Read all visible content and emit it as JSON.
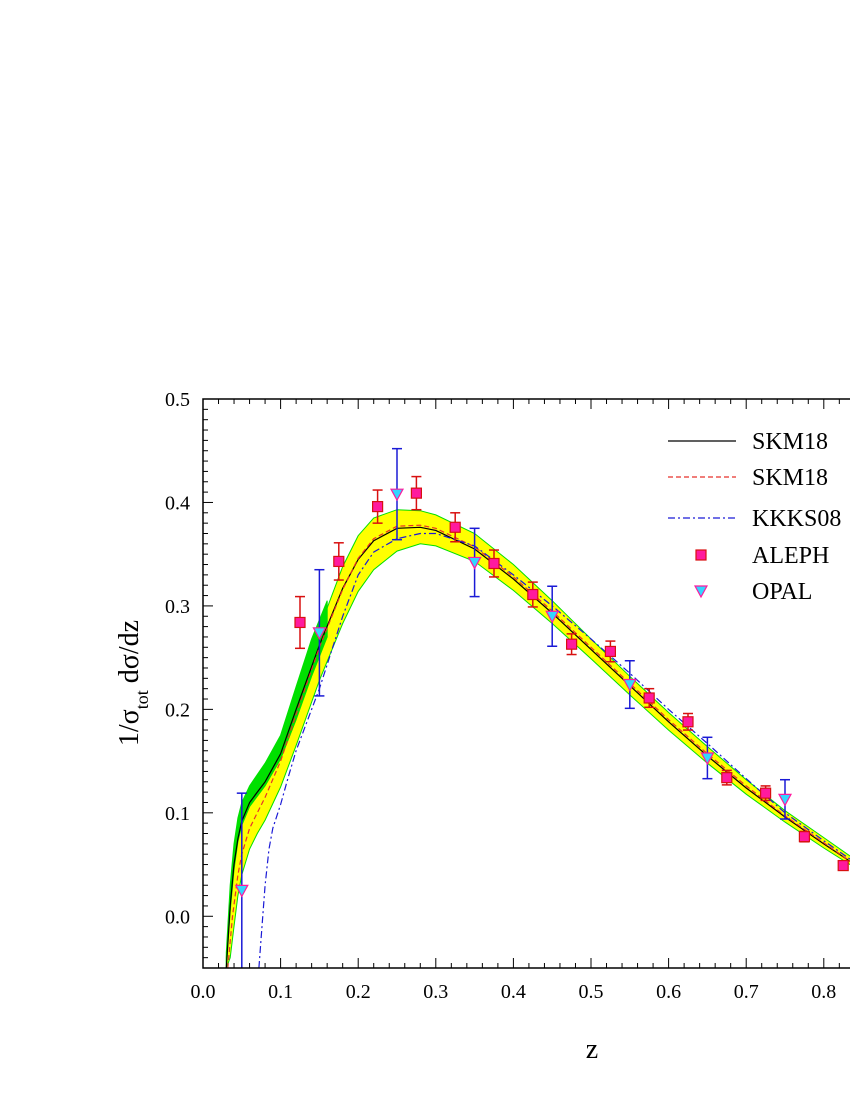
{
  "chart_data": {
    "type": "line",
    "xlabel": "z",
    "ylabel": "1/σtot dσ/dz",
    "ylabel_parts": {
      "pre": "1/σ",
      "sub": "tot",
      "post": " dσ/dz"
    },
    "xlim": [
      0.0,
      0.84
    ],
    "ylim": [
      -0.05,
      0.5
    ],
    "x_ticks": [
      "0.0",
      "0.1",
      "0.2",
      "0.3",
      "0.4",
      "0.5",
      "0.6",
      "0.7",
      "0.8"
    ],
    "y_ticks": [
      "0.0",
      "0.1",
      "0.2",
      "0.3",
      "0.4",
      "0.5"
    ],
    "grid": false,
    "legend_position": "top-right",
    "colors": {
      "skm18_a": "#000000",
      "skm18_b": "#e8312a",
      "kkks08": "#1a1ad6",
      "aleph_fill": "#ff1a9e",
      "aleph_err": "#d81010",
      "opal_fill": "#33d6ff",
      "opal_err": "#1a1ad6",
      "band_yellow": "#ffff00",
      "band_green": "#00e000"
    },
    "series": [
      {
        "name": "SKM18",
        "style": "solid",
        "x": [
          0.03,
          0.035,
          0.04,
          0.045,
          0.05,
          0.06,
          0.07,
          0.08,
          0.1,
          0.12,
          0.15,
          0.18,
          0.2,
          0.22,
          0.25,
          0.28,
          0.3,
          0.35,
          0.4,
          0.45,
          0.5,
          0.55,
          0.6,
          0.65,
          0.7,
          0.75,
          0.8,
          0.84
        ],
        "y": [
          -0.05,
          0.01,
          0.05,
          0.075,
          0.092,
          0.11,
          0.12,
          0.13,
          0.157,
          0.2,
          0.262,
          0.317,
          0.345,
          0.363,
          0.375,
          0.376,
          0.373,
          0.355,
          0.326,
          0.293,
          0.258,
          0.223,
          0.188,
          0.155,
          0.124,
          0.096,
          0.07,
          0.05
        ]
      },
      {
        "name": "SKM18",
        "style": "dashed",
        "x": [
          0.032,
          0.038,
          0.045,
          0.05,
          0.06,
          0.07,
          0.08,
          0.1,
          0.12,
          0.15,
          0.18,
          0.2,
          0.22,
          0.25,
          0.28,
          0.3,
          0.35,
          0.4,
          0.45,
          0.5,
          0.55,
          0.6,
          0.65,
          0.7,
          0.75,
          0.8,
          0.84
        ],
        "y": [
          -0.05,
          0.0,
          0.04,
          0.06,
          0.085,
          0.1,
          0.115,
          0.15,
          0.195,
          0.26,
          0.316,
          0.346,
          0.365,
          0.377,
          0.378,
          0.375,
          0.357,
          0.328,
          0.295,
          0.26,
          0.225,
          0.19,
          0.157,
          0.126,
          0.097,
          0.071,
          0.05
        ]
      },
      {
        "name": "KKKS08",
        "style": "dashdot",
        "x": [
          0.072,
          0.075,
          0.08,
          0.085,
          0.09,
          0.1,
          0.11,
          0.12,
          0.15,
          0.18,
          0.2,
          0.22,
          0.25,
          0.28,
          0.3,
          0.35,
          0.4,
          0.45,
          0.5,
          0.55,
          0.6,
          0.65,
          0.7,
          0.75,
          0.8,
          0.84
        ],
        "y": [
          -0.05,
          -0.02,
          0.03,
          0.065,
          0.085,
          0.108,
          0.135,
          0.16,
          0.22,
          0.29,
          0.33,
          0.352,
          0.365,
          0.37,
          0.37,
          0.358,
          0.33,
          0.3,
          0.268,
          0.235,
          0.2,
          0.167,
          0.133,
          0.1,
          0.073,
          0.052
        ]
      },
      {
        "name": "ALEPH",
        "marker": "square",
        "x": [
          0.125,
          0.175,
          0.225,
          0.275,
          0.325,
          0.375,
          0.425,
          0.475,
          0.525,
          0.575,
          0.625,
          0.675,
          0.725,
          0.775,
          0.825
        ],
        "y": [
          0.284,
          0.343,
          0.396,
          0.409,
          0.376,
          0.341,
          0.311,
          0.263,
          0.256,
          0.211,
          0.188,
          0.134,
          0.119,
          0.077,
          0.049
        ],
        "err": [
          0.025,
          0.018,
          0.016,
          0.016,
          0.014,
          0.013,
          0.012,
          0.01,
          0.01,
          0.009,
          0.008,
          0.007,
          0.007,
          0.005,
          0.004
        ]
      },
      {
        "name": "OPAL",
        "marker": "triangle-down",
        "x": [
          0.05,
          0.15,
          0.25,
          0.35,
          0.45,
          0.55,
          0.65,
          0.75
        ],
        "y": [
          0.025,
          0.274,
          0.408,
          0.342,
          0.29,
          0.224,
          0.153,
          0.113
        ],
        "err": [
          0.094,
          0.061,
          0.044,
          0.033,
          0.029,
          0.023,
          0.02,
          0.019
        ]
      }
    ],
    "band_yellow": {
      "x": [
        0.03,
        0.035,
        0.04,
        0.045,
        0.05,
        0.06,
        0.07,
        0.08,
        0.1,
        0.12,
        0.15,
        0.18,
        0.2,
        0.22,
        0.25,
        0.28,
        0.3,
        0.35,
        0.4,
        0.45,
        0.5,
        0.55,
        0.6,
        0.65,
        0.7,
        0.75,
        0.8,
        0.84
      ],
      "low": [
        -0.05,
        -0.04,
        -0.01,
        0.02,
        0.04,
        0.065,
        0.08,
        0.093,
        0.125,
        0.165,
        0.228,
        0.283,
        0.314,
        0.335,
        0.353,
        0.36,
        0.358,
        0.343,
        0.315,
        0.283,
        0.249,
        0.214,
        0.18,
        0.148,
        0.118,
        0.091,
        0.066,
        0.047
      ],
      "high": [
        -0.04,
        0.015,
        0.055,
        0.08,
        0.097,
        0.115,
        0.125,
        0.135,
        0.163,
        0.21,
        0.278,
        0.338,
        0.368,
        0.385,
        0.393,
        0.392,
        0.388,
        0.37,
        0.34,
        0.305,
        0.268,
        0.232,
        0.197,
        0.164,
        0.132,
        0.102,
        0.076,
        0.055
      ]
    },
    "band_green": {
      "x": [
        0.03,
        0.035,
        0.04,
        0.045,
        0.05,
        0.06,
        0.07,
        0.08,
        0.1,
        0.12,
        0.14,
        0.16
      ],
      "low": [
        -0.05,
        0.005,
        0.045,
        0.072,
        0.088,
        0.106,
        0.116,
        0.126,
        0.152,
        0.19,
        0.232,
        0.27
      ],
      "high": [
        -0.035,
        0.03,
        0.07,
        0.095,
        0.11,
        0.126,
        0.137,
        0.148,
        0.175,
        0.222,
        0.268,
        0.305
      ]
    }
  }
}
